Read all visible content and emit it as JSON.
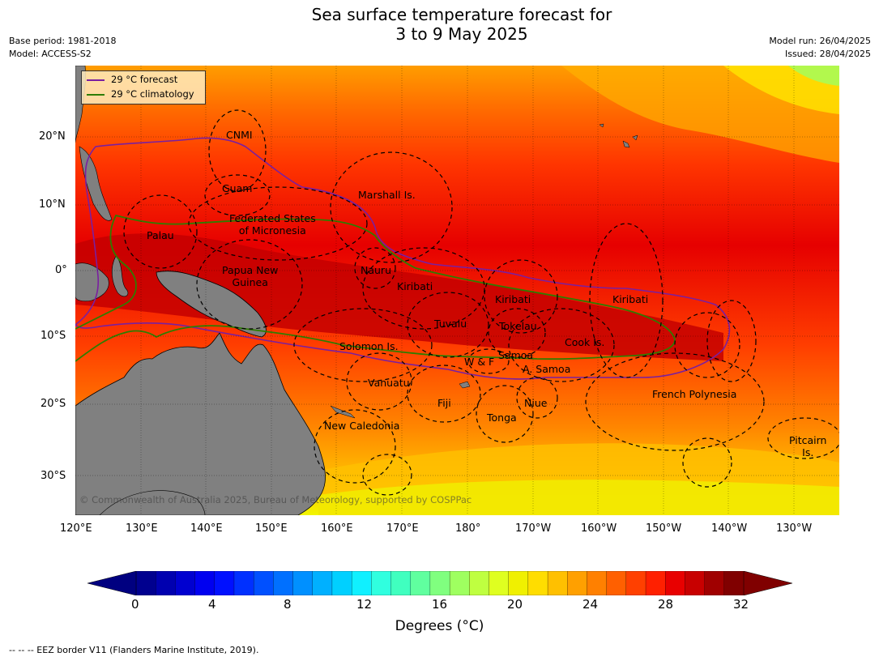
{
  "title": {
    "line1": "Sea surface temperature forecast for",
    "line2": "3 to 9 May 2025"
  },
  "meta_left": {
    "base_period": "Base period: 1981-2018",
    "model": "Model: ACCESS-S2"
  },
  "meta_right": {
    "model_run": "Model run: 26/04/2025",
    "issued": "Issued: 28/04/2025"
  },
  "legend": {
    "forecast": "29 °C  forecast",
    "climatology": "29 °C  climatology",
    "forecast_color": "#7a1fa0",
    "climatology_color": "#2e7d00"
  },
  "map": {
    "lon_labels": [
      "120°E",
      "130°E",
      "140°E",
      "150°E",
      "160°E",
      "170°E",
      "180°",
      "170°W",
      "160°W",
      "150°W",
      "140°W",
      "130°W"
    ],
    "lat_labels": [
      "20°N",
      "10°N",
      "0°",
      "10°S",
      "20°S",
      "30°S"
    ],
    "region_labels": [
      {
        "id": "cnmi",
        "text": "CNMI"
      },
      {
        "id": "guam",
        "text": "Guam"
      },
      {
        "id": "marshall",
        "text": "Marshall Is."
      },
      {
        "id": "fsm",
        "text": "Federated States\nof Micronesia"
      },
      {
        "id": "palau",
        "text": "Palau"
      },
      {
        "id": "png",
        "text": "Papua New\nGuinea"
      },
      {
        "id": "nauru",
        "text": "Nauru"
      },
      {
        "id": "kiribati1",
        "text": "Kiribati"
      },
      {
        "id": "kiribati2",
        "text": "Kiribati"
      },
      {
        "id": "kiribati3",
        "text": "Kiribati"
      },
      {
        "id": "tuvalu",
        "text": "Tuvalu"
      },
      {
        "id": "tokelau",
        "text": "Tokelau"
      },
      {
        "id": "cook",
        "text": "Cook Is."
      },
      {
        "id": "solomon",
        "text": "Solomon Is."
      },
      {
        "id": "wf",
        "text": "W & F"
      },
      {
        "id": "samoa",
        "text": "Samoa"
      },
      {
        "id": "asamoa",
        "text": "A. Samoa"
      },
      {
        "id": "vanuatu",
        "text": "Vanuatu"
      },
      {
        "id": "fiji",
        "text": "Fiji"
      },
      {
        "id": "niue",
        "text": "Niue"
      },
      {
        "id": "tonga",
        "text": "Tonga"
      },
      {
        "id": "frpoly",
        "text": "French Polynesia"
      },
      {
        "id": "newcal",
        "text": "New Caledonia"
      },
      {
        "id": "pitcairn",
        "text": "Pitcairn\nIs."
      }
    ],
    "copyright": "© Commonwealth of Australia 2025, Bureau of Meteorology, supported by COSPPac",
    "land_color": "#808080"
  },
  "colorbar": {
    "tick_labels": [
      "0",
      "4",
      "8",
      "12",
      "16",
      "20",
      "24",
      "28",
      "32"
    ],
    "title": "Degrees (°C)",
    "colors": [
      "#00008f",
      "#0000b0",
      "#0000d0",
      "#0000f0",
      "#0010ff",
      "#0030ff",
      "#0050ff",
      "#0070ff",
      "#0090ff",
      "#00b0ff",
      "#00d0ff",
      "#10f0ff",
      "#30ffdf",
      "#40ffbf",
      "#60ff9f",
      "#80ff7f",
      "#9fff60",
      "#bfff40",
      "#dfff20",
      "#f0f000",
      "#ffdd00",
      "#ffc000",
      "#ffa000",
      "#ff8000",
      "#ff6000",
      "#ff4000",
      "#ff2000",
      "#e80000",
      "#c80000",
      "#a00000",
      "#800000"
    ],
    "under_color": "#000080",
    "over_color": "#800000"
  },
  "footnote": "--  --  -- EEZ border V11 (Flanders Marine Institute, 2019)."
}
